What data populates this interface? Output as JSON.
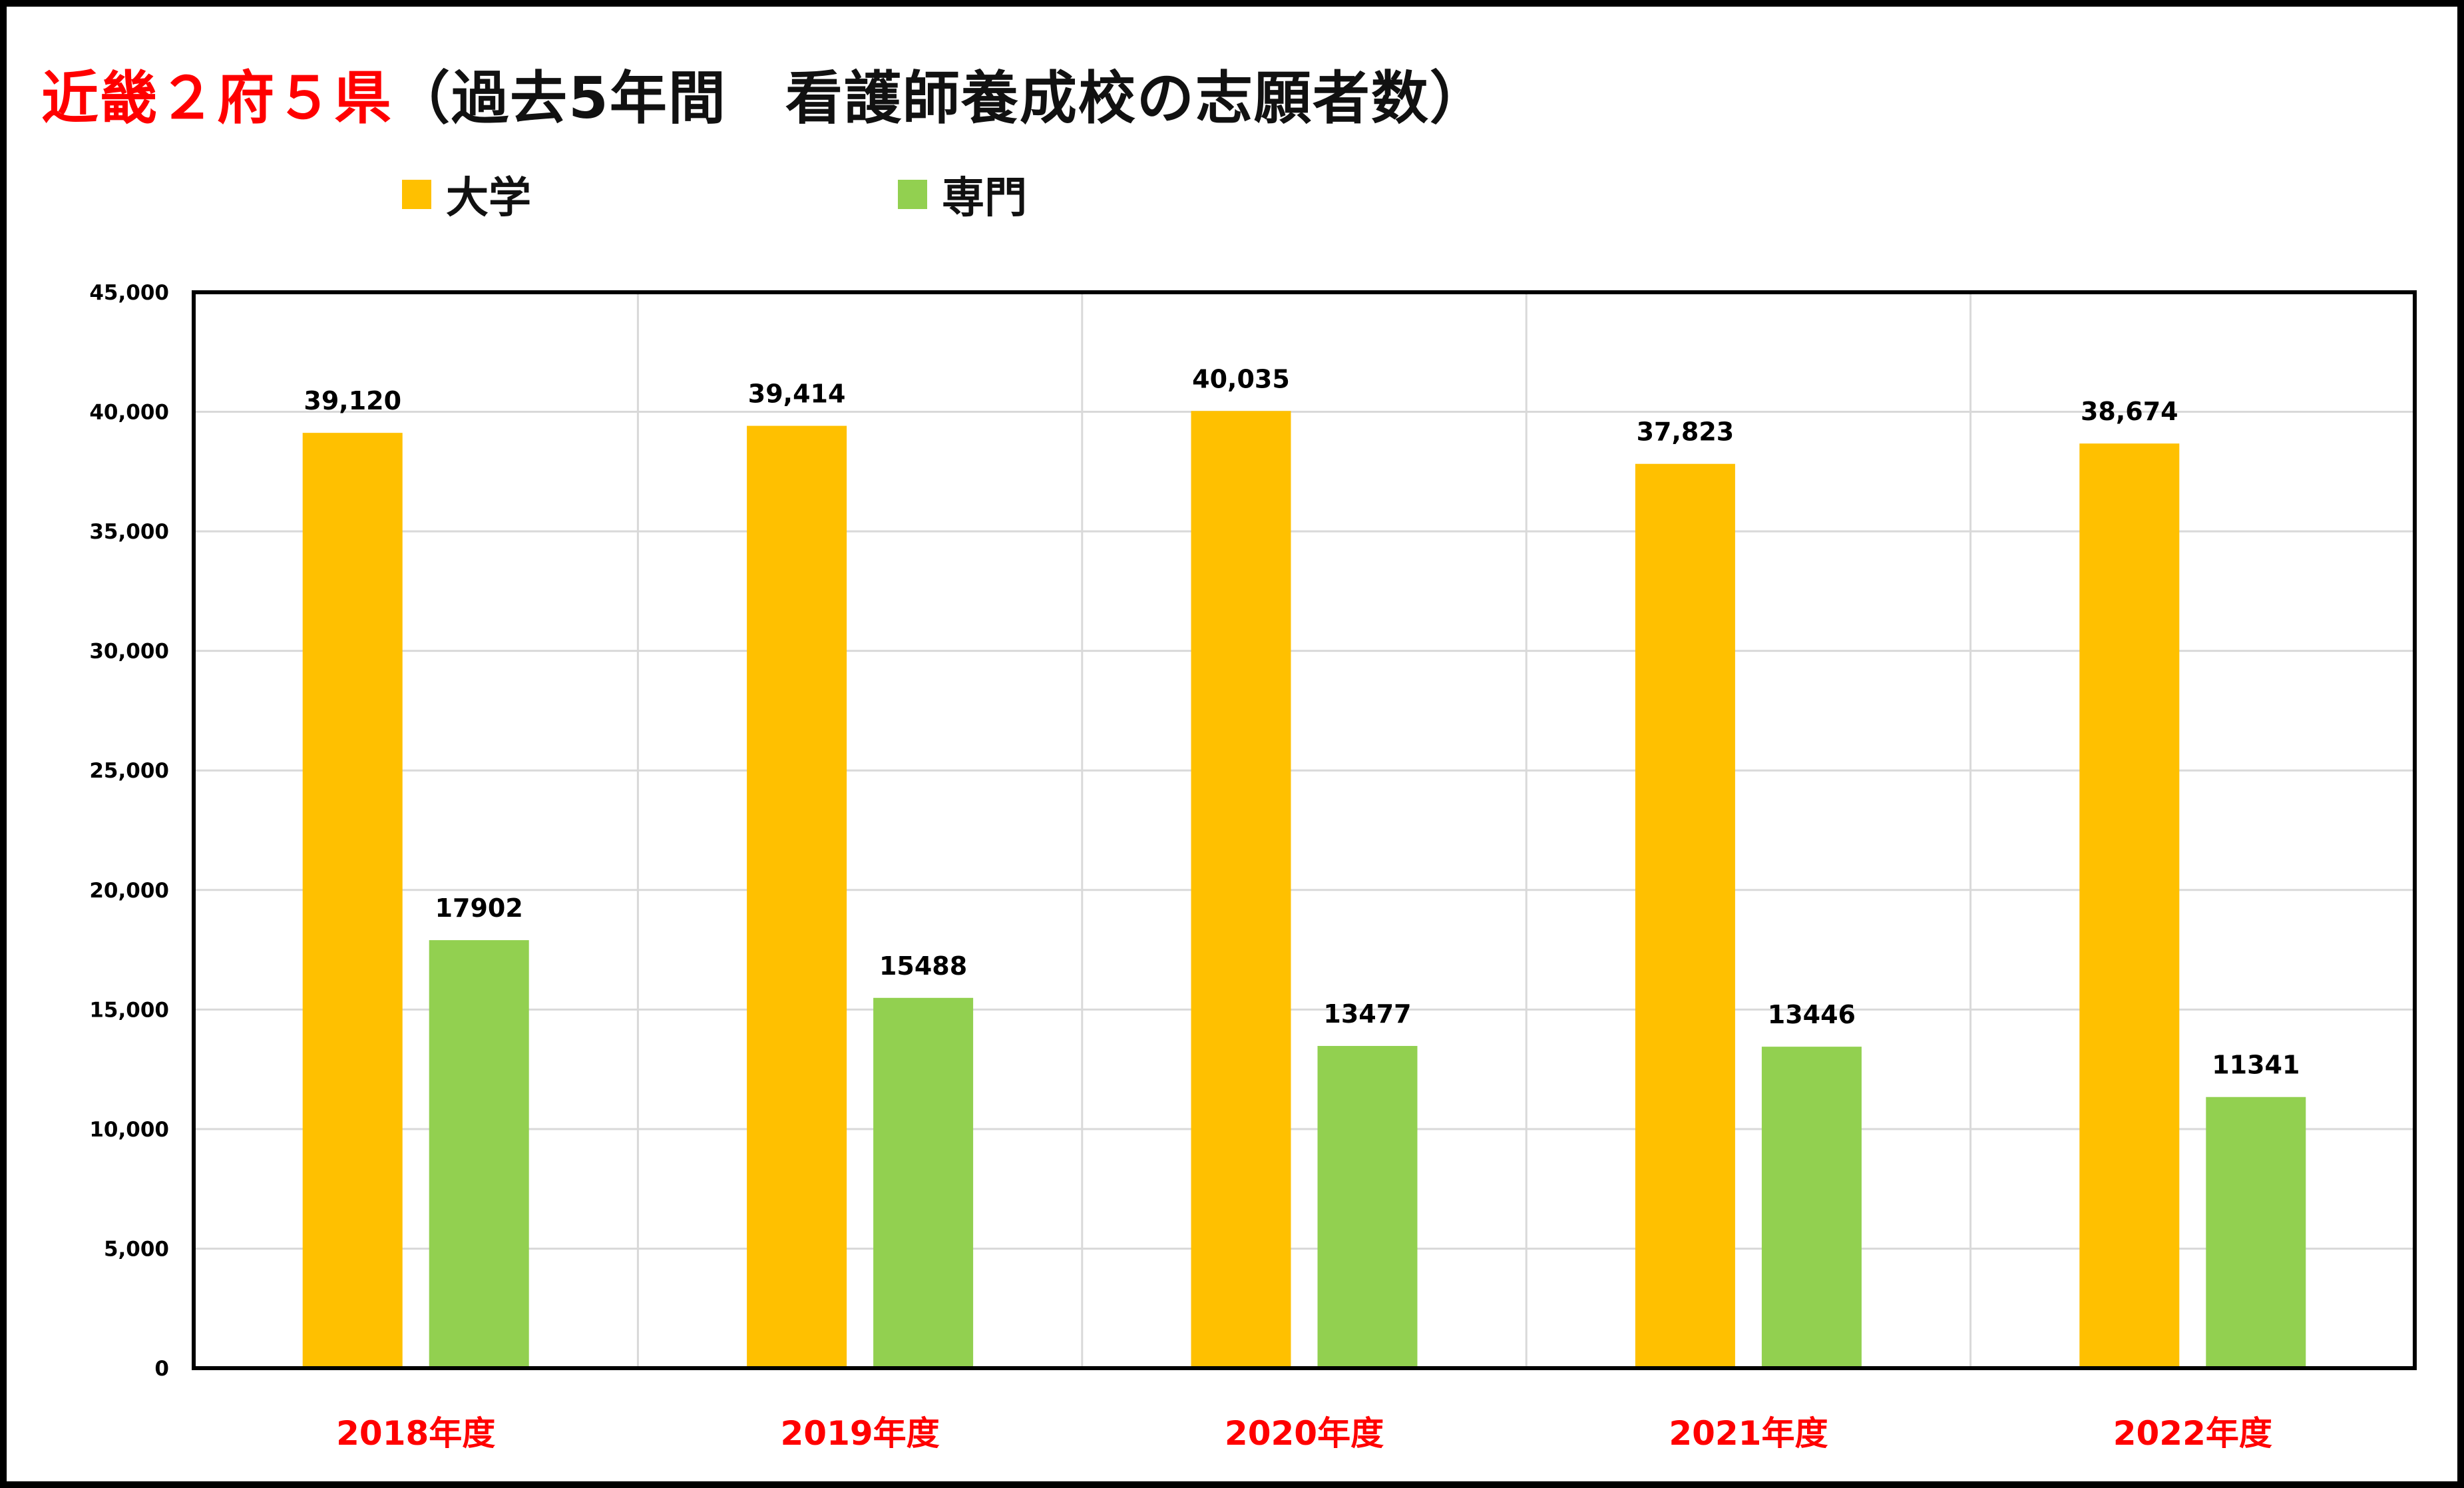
{
  "title": {
    "highlight": "近畿２府５県",
    "rest": "（過去5年間　看護師養成校の志願者数）",
    "highlight_color": "#ff0000"
  },
  "legend": {
    "placement": "top"
  },
  "chart_data": {
    "type": "bar",
    "categories": [
      "2018年度",
      "2019年度",
      "2020年度",
      "2021年度",
      "2022年度"
    ],
    "category_color": "#ff0000",
    "series": [
      {
        "name": "大学",
        "color": "#ffc000",
        "values": [
          39120,
          39414,
          40035,
          37823,
          38674
        ],
        "labels": [
          "39,120",
          "39,414",
          "40,035",
          "37,823",
          "38,674"
        ]
      },
      {
        "name": "専門",
        "color": "#92d050",
        "values": [
          17902,
          15488,
          13477,
          13446,
          11341
        ],
        "labels": [
          "17902",
          "15488",
          "13477",
          "13446",
          "11341"
        ]
      }
    ],
    "ylim": [
      0,
      45000
    ],
    "yticks": [
      "0",
      "5,000",
      "10,000",
      "15,000",
      "20,000",
      "25,000",
      "30,000",
      "35,000",
      "40,000",
      "45,000"
    ],
    "grid": true,
    "gridline_color": "#d9d9d9",
    "xlabel": "",
    "ylabel": ""
  }
}
